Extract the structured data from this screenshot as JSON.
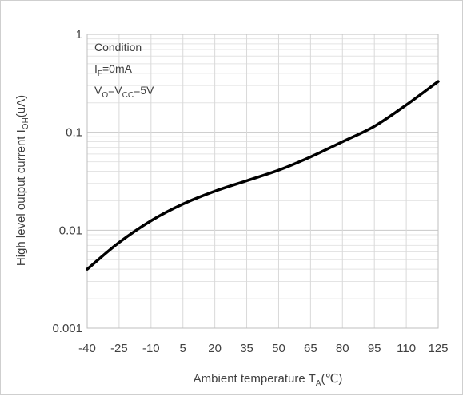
{
  "chart_data": {
    "type": "line",
    "xlabel_main": "Ambient temperature T",
    "xlabel_sub": "A",
    "xlabel_unit": "(℃)",
    "ylabel_main": "High level output current I",
    "ylabel_sub": "OH",
    "ylabel_unit": "(uA)",
    "x_ticks": [
      -40,
      -25,
      -10,
      5,
      20,
      35,
      50,
      65,
      80,
      95,
      110,
      125
    ],
    "x_tick_labels": [
      "-40",
      "-25",
      "-10",
      "5",
      "20",
      "35",
      "50",
      "65",
      "80",
      "95",
      "110",
      "125"
    ],
    "xlim": [
      -40,
      125
    ],
    "y_scale": "log",
    "ylim": [
      0.001,
      1
    ],
    "y_ticks": [
      0.001,
      0.01,
      0.1,
      1
    ],
    "y_tick_labels": [
      "0.001",
      "0.01",
      "0.1",
      "1"
    ],
    "grid": true,
    "series": [
      {
        "color": "#000000",
        "x": [
          -40,
          -25,
          -10,
          5,
          20,
          35,
          50,
          65,
          80,
          95,
          110,
          125
        ],
        "y": [
          0.004,
          0.0075,
          0.0125,
          0.0185,
          0.025,
          0.032,
          0.041,
          0.056,
          0.08,
          0.115,
          0.19,
          0.33
        ]
      }
    ],
    "annotation": {
      "line1": "Condition",
      "line2_main": "I",
      "line2_sub": "F",
      "line2_rest": "=0mA",
      "line3_a": "V",
      "line3_sub1": "O",
      "line3_b": "=V",
      "line3_sub2": "CC",
      "line3_c": "=5V"
    }
  }
}
